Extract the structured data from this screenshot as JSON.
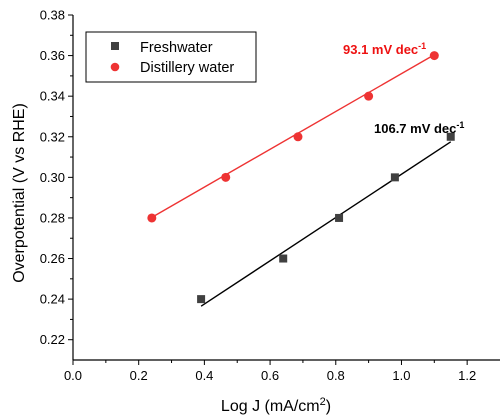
{
  "chart_data": {
    "type": "scatter",
    "xlabel": "Log J (mA/cm",
    "xlabel_sup": "2",
    "xlabel_end": ")",
    "ylabel": "Overpotential (V vs RHE)",
    "xlim": [
      0.0,
      1.3
    ],
    "ylim": [
      0.21,
      0.38
    ],
    "x_ticks": [
      0.0,
      0.2,
      0.4,
      0.6,
      0.8,
      1.0,
      1.2
    ],
    "x_tick_labels": [
      "0.0",
      "0.2",
      "0.4",
      "0.6",
      "0.8",
      "1.0",
      "1.2"
    ],
    "y_ticks": [
      0.22,
      0.24,
      0.26,
      0.28,
      0.3,
      0.32,
      0.34,
      0.36,
      0.38
    ],
    "y_tick_labels": [
      "0.22",
      "0.24",
      "0.26",
      "0.28",
      "0.30",
      "0.32",
      "0.34",
      "0.36",
      "0.38"
    ],
    "legend_position": "top-left",
    "grid": false,
    "series": [
      {
        "name": "Freshwater",
        "marker": "square",
        "color": "#404040",
        "fit_color": "#000000",
        "x": [
          0.39,
          0.64,
          0.81,
          0.98,
          1.15
        ],
        "y": [
          0.24,
          0.26,
          0.28,
          0.3,
          0.32
        ],
        "fit": {
          "x": [
            0.39,
            1.15
          ],
          "y": [
            0.2365,
            0.3175
          ]
        },
        "annotation": "106.7 mV dec",
        "annotation_sup": "-1",
        "annotation_color": "#000000"
      },
      {
        "name": "Distillery water",
        "marker": "circle",
        "color": "#ee3333",
        "fit_color": "#ee3333",
        "x": [
          0.24,
          0.465,
          0.685,
          0.9,
          1.1
        ],
        "y": [
          0.28,
          0.3,
          0.32,
          0.34,
          0.36
        ],
        "fit": {
          "x": [
            0.24,
            1.1
          ],
          "y": [
            0.2803,
            0.3604
          ]
        },
        "annotation": "93.1 mV dec",
        "annotation_sup": "-1",
        "annotation_color": "#ee1111"
      }
    ]
  }
}
